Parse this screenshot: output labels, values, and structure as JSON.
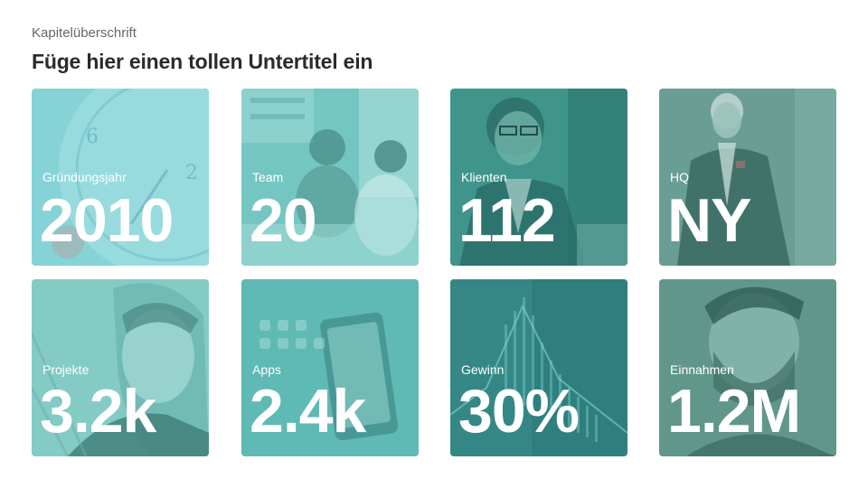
{
  "header": {
    "chapter_title": "Kapitelüberschrift",
    "subtitle": "Füge hier einen tollen Untertitel ein"
  },
  "tiles": [
    {
      "label": "Gründungsjahr",
      "value": "2010",
      "image": "clock-photo",
      "color": "#7fd0d4"
    },
    {
      "label": "Team",
      "value": "20",
      "image": "team-meeting-photo",
      "color": "#6cc0bd"
    },
    {
      "label": "Klienten",
      "value": "112",
      "image": "smiling-man-photo",
      "color": "#3b8f86"
    },
    {
      "label": "HQ",
      "value": "NY",
      "image": "senior-businessman-photo",
      "color": "#5f958c"
    },
    {
      "label": "Projekte",
      "value": "3.2k",
      "image": "businessman-portrait-photo",
      "color": "#7dc8c3"
    },
    {
      "label": "Apps",
      "value": "2.4k",
      "image": "smartphone-apps-photo",
      "color": "#5cb6b2"
    },
    {
      "label": "Gewinn",
      "value": "30%",
      "image": "stock-chart-photo",
      "color": "#2f7d7c"
    },
    {
      "label": "Einnahmen",
      "value": "1.2M",
      "image": "bearded-man-photo",
      "color": "#5b8f84"
    }
  ]
}
